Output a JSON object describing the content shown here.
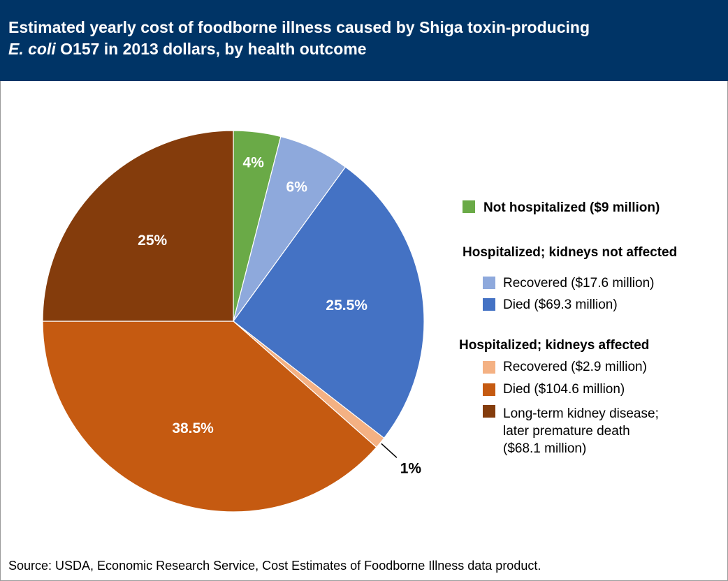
{
  "header": {
    "title_line1": "Estimated yearly cost of foodborne illness caused by Shiga toxin-producing",
    "title_line2_italic": "E. coli",
    "title_line2_rest": " O157 in 2013 dollars, by health outcome"
  },
  "legend": {
    "group_not_hospitalized": "Not hospitalized ($9 million)",
    "group_kidneys_not_affected": "Hospitalized; kidneys not affected",
    "group_kidneys_affected": "Hospitalized; kidneys affected",
    "items": {
      "nka_recovered": "Recovered ($17.6 million)",
      "nka_died": "Died ($69.3 million)",
      "ka_recovered": "Recovered ($2.9 million)",
      "ka_died": "Died ($104.6 million)",
      "ka_longterm_1": "Long-term kidney disease;",
      "ka_longterm_2": "later premature death",
      "ka_longterm_3": "($68.1 million)"
    }
  },
  "source": "Source: USDA, Economic Research Service, Cost Estimates of Foodborne Illness data product.",
  "chart_data": {
    "type": "pie",
    "title": "Estimated yearly cost of foodborne illness caused by Shiga toxin-producing E. coli O157 in 2013 dollars, by health outcome",
    "start": "12 o'clock",
    "direction": "clockwise",
    "slices": [
      {
        "label": "Not hospitalized ($9 million)",
        "value": 4,
        "display": "4%",
        "color": "#6aaa47"
      },
      {
        "label": "Hospitalized; kidneys not affected - Recovered ($17.6 million)",
        "value": 6,
        "display": "6%",
        "color": "#8ea9dc"
      },
      {
        "label": "Hospitalized; kidneys not affected - Died ($69.3 million)",
        "value": 25.5,
        "display": "25.5%",
        "color": "#4472c4"
      },
      {
        "label": "Hospitalized; kidneys affected - Recovered ($2.9 million)",
        "value": 1,
        "display": "1%",
        "color": "#f4b183"
      },
      {
        "label": "Hospitalized; kidneys affected - Died ($104.6 million)",
        "value": 38.5,
        "display": "38.5%",
        "color": "#c55a11"
      },
      {
        "label": "Hospitalized; kidneys affected - Long-term kidney disease; later premature death ($68.1 million)",
        "value": 25,
        "display": "25%",
        "color": "#843c0c"
      }
    ]
  }
}
